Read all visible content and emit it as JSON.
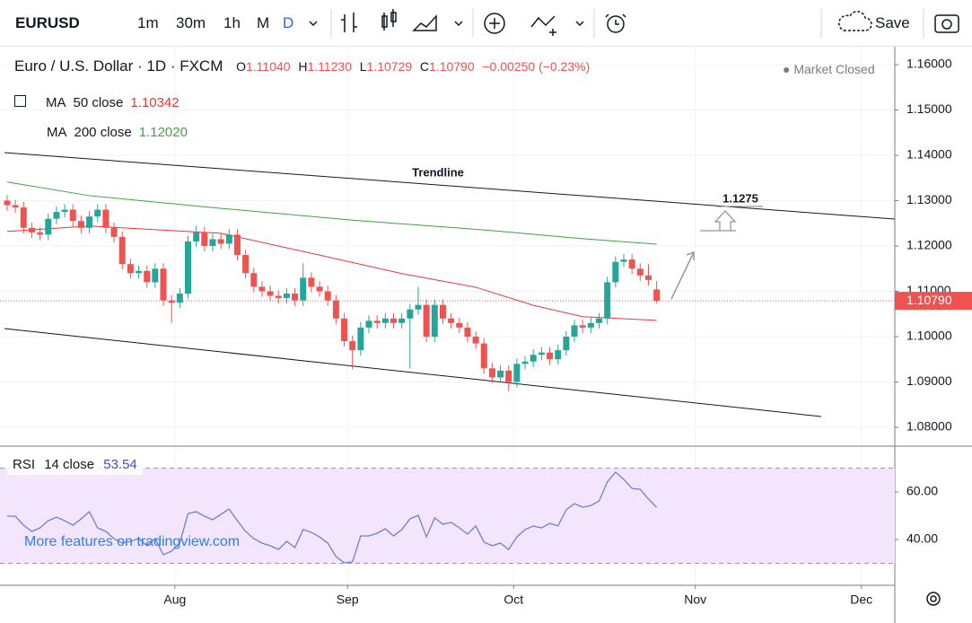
{
  "toolbar": {
    "symbol": "EURUSD",
    "intervals": [
      "1m",
      "30m",
      "1h",
      "M",
      "D"
    ],
    "save": "Save"
  },
  "legend": {
    "title": "Euro / U.S. Dollar · 1D · FXCM",
    "open_label": "O",
    "open": "1.11040",
    "high_label": "H",
    "high": "1.11230",
    "low_label": "L",
    "low": "1.10729",
    "close_label": "C",
    "close": "1.10790",
    "change": "−0.00250 (−0.23%)",
    "status": "Market Closed"
  },
  "chart_data": {
    "type": "candlestick",
    "up_color": "#26a69a",
    "down_color": "#ef5350",
    "xlim": [
      -0.87,
      107.97
    ],
    "xticks": [
      {
        "value": 20.4,
        "label": "Aug"
      },
      {
        "value": 41.4,
        "label": "Sep"
      },
      {
        "value": 61.6,
        "label": "Oct"
      },
      {
        "value": 83.7,
        "label": "Nov"
      },
      {
        "value": 103.9,
        "label": "Dec"
      }
    ],
    "ylim": [
      1.07584,
      1.16396
    ],
    "yticks": [
      {
        "value": 1.08,
        "label": "1.08000"
      },
      {
        "value": 1.09,
        "label": "1.09000"
      },
      {
        "value": 1.1,
        "label": "1.10000"
      },
      {
        "value": 1.11,
        "label": "1.11000"
      },
      {
        "value": 1.12,
        "label": "1.12000"
      },
      {
        "value": 1.13,
        "label": "1.13000"
      },
      {
        "value": 1.14,
        "label": "1.14000"
      },
      {
        "value": 1.15,
        "label": "1.15000"
      },
      {
        "value": 1.16,
        "label": "1.16000"
      }
    ],
    "last_price": {
      "value": 1.1079,
      "label": "1.10790"
    },
    "annotations": [
      "Trendline",
      "1.1275"
    ],
    "candles": [
      [
        1.13,
        1.1312,
        1.1278,
        1.129
      ],
      [
        1.129,
        1.1302,
        1.1273,
        1.1285
      ],
      [
        1.1285,
        1.1297,
        1.1228,
        1.124
      ],
      [
        1.124,
        1.1252,
        1.1218,
        1.123
      ],
      [
        1.123,
        1.1242,
        1.1213,
        1.1225
      ],
      [
        1.1225,
        1.1272,
        1.1213,
        1.126
      ],
      [
        1.126,
        1.1287,
        1.1248,
        1.1275
      ],
      [
        1.1275,
        1.1292,
        1.1263,
        1.128
      ],
      [
        1.128,
        1.1292,
        1.1243,
        1.1255
      ],
      [
        1.1255,
        1.1267,
        1.1228,
        1.124
      ],
      [
        1.124,
        1.1277,
        1.1228,
        1.1265
      ],
      [
        1.1265,
        1.1292,
        1.1253,
        1.128
      ],
      [
        1.128,
        1.1292,
        1.1228,
        1.124
      ],
      [
        1.124,
        1.1252,
        1.1208,
        1.122
      ],
      [
        1.122,
        1.1232,
        1.1148,
        1.116
      ],
      [
        1.116,
        1.1172,
        1.1128,
        1.114
      ],
      [
        1.114,
        1.1157,
        1.1128,
        1.1145
      ],
      [
        1.1145,
        1.1157,
        1.1108,
        1.112
      ],
      [
        1.112,
        1.1162,
        1.1108,
        1.115
      ],
      [
        1.115,
        1.1162,
        1.1068,
        1.108
      ],
      [
        1.108,
        1.1092,
        1.103,
        1.1075
      ],
      [
        1.1075,
        1.1107,
        1.1063,
        1.1095
      ],
      [
        1.1095,
        1.1222,
        1.1083,
        1.121
      ],
      [
        1.121,
        1.1245,
        1.1198,
        1.123
      ],
      [
        1.123,
        1.1242,
        1.1188,
        1.12
      ],
      [
        1.12,
        1.1227,
        1.1188,
        1.1215
      ],
      [
        1.1215,
        1.1227,
        1.1193,
        1.1205
      ],
      [
        1.1205,
        1.1237,
        1.1193,
        1.1225
      ],
      [
        1.1225,
        1.1237,
        1.1168,
        1.118
      ],
      [
        1.118,
        1.1192,
        1.1128,
        1.114
      ],
      [
        1.114,
        1.1152,
        1.1098,
        1.111
      ],
      [
        1.111,
        1.1122,
        1.1088,
        1.11
      ],
      [
        1.11,
        1.1112,
        1.1078,
        1.109
      ],
      [
        1.109,
        1.1102,
        1.1073,
        1.1085
      ],
      [
        1.1085,
        1.1107,
        1.1073,
        1.1095
      ],
      [
        1.1095,
        1.1107,
        1.1068,
        1.108
      ],
      [
        1.108,
        1.1162,
        1.1068,
        1.113
      ],
      [
        1.113,
        1.1142,
        1.1098,
        1.111
      ],
      [
        1.111,
        1.1122,
        1.1088,
        1.11
      ],
      [
        1.11,
        1.1112,
        1.1068,
        1.108
      ],
      [
        1.108,
        1.1092,
        1.1028,
        1.104
      ],
      [
        1.104,
        1.1052,
        1.0978,
        1.099
      ],
      [
        1.099,
        1.1002,
        1.0928,
        1.097
      ],
      [
        1.097,
        1.1032,
        1.0958,
        1.102
      ],
      [
        1.102,
        1.1047,
        1.1008,
        1.1035
      ],
      [
        1.1035,
        1.1047,
        1.1018,
        1.103
      ],
      [
        1.103,
        1.1052,
        1.1018,
        1.104
      ],
      [
        1.104,
        1.1052,
        1.1018,
        1.103
      ],
      [
        1.103,
        1.1052,
        1.1018,
        1.104
      ],
      [
        1.104,
        1.1072,
        1.093,
        1.106
      ],
      [
        1.106,
        1.111,
        1.1048,
        1.107
      ],
      [
        1.107,
        1.1082,
        1.0988,
        1.1
      ],
      [
        1.1,
        1.1082,
        1.0988,
        1.107
      ],
      [
        1.107,
        1.1082,
        1.1028,
        1.104
      ],
      [
        1.104,
        1.1052,
        1.1018,
        1.103
      ],
      [
        1.103,
        1.1042,
        1.1008,
        1.102
      ],
      [
        1.102,
        1.1032,
        1.0988,
        1.1
      ],
      [
        1.1,
        1.1012,
        1.0973,
        1.0985
      ],
      [
        1.0985,
        1.0997,
        1.0918,
        1.093
      ],
      [
        1.093,
        1.0942,
        1.0898,
        1.091
      ],
      [
        1.091,
        1.0937,
        1.0898,
        1.0925
      ],
      [
        1.0925,
        1.0937,
        1.088,
        1.09
      ],
      [
        1.09,
        1.0952,
        1.0888,
        1.094
      ],
      [
        1.094,
        1.0957,
        1.0928,
        1.0945
      ],
      [
        1.0945,
        1.0972,
        1.0933,
        1.096
      ],
      [
        1.096,
        1.0977,
        1.0948,
        1.0965
      ],
      [
        1.0965,
        1.0977,
        1.0938,
        1.095
      ],
      [
        1.095,
        1.0982,
        1.0938,
        1.097
      ],
      [
        1.097,
        1.1012,
        1.0958,
        1.1
      ],
      [
        1.1,
        1.1037,
        1.0988,
        1.1025
      ],
      [
        1.1025,
        1.1037,
        1.1008,
        1.102
      ],
      [
        1.102,
        1.1042,
        1.1008,
        1.103
      ],
      [
        1.103,
        1.1052,
        1.1018,
        1.104
      ],
      [
        1.104,
        1.1132,
        1.1028,
        1.112
      ],
      [
        1.112,
        1.1177,
        1.1108,
        1.1165
      ],
      [
        1.1165,
        1.1182,
        1.1153,
        1.117
      ],
      [
        1.117,
        1.1182,
        1.1138,
        1.115
      ],
      [
        1.115,
        1.1162,
        1.1123,
        1.1135
      ],
      [
        1.1135,
        1.116,
        1.1113,
        1.1125
      ],
      [
        1.1104,
        1.1123,
        1.1073,
        1.1079
      ]
    ],
    "series": [
      {
        "name": "MA",
        "params": "50 close",
        "value_label": "1.10342",
        "color": "#e53935",
        "x": [
          0,
          10,
          26,
          37,
          48,
          57,
          64,
          70,
          79
        ],
        "values": [
          1.1232,
          1.1244,
          1.1228,
          1.1184,
          1.1139,
          1.1109,
          1.1069,
          1.1044,
          1.1036
        ]
      },
      {
        "name": "MA",
        "params": "200 close",
        "value_label": "1.12020",
        "color": "#43a047",
        "x": [
          0,
          10,
          26,
          42,
          59,
          70,
          79
        ],
        "values": [
          1.1341,
          1.1311,
          1.1283,
          1.1257,
          1.1234,
          1.1216,
          1.1204
        ]
      }
    ],
    "rsi": {
      "name": "RSI",
      "params": "14 close",
      "value_label": "53.54",
      "color": "#6f7fd6",
      "band": [
        30,
        70
      ],
      "band_color": "#f3e5fb",
      "ylim": [
        20.75,
        79.25
      ],
      "yticks": [
        {
          "value": 40,
          "label": "40.00"
        },
        {
          "value": 60,
          "label": "60.00"
        }
      ],
      "values": [
        49.8,
        49.8,
        46.0,
        43.4,
        44.9,
        47.9,
        49.4,
        47.9,
        46.0,
        48.7,
        51.7,
        44.9,
        43.4,
        40.4,
        38.5,
        39.2,
        40.4,
        37.4,
        40.4,
        33.6,
        35.1,
        38.5,
        50.9,
        51.7,
        49.8,
        48.3,
        50.6,
        52.8,
        47.9,
        43.4,
        40.4,
        38.5,
        37.4,
        35.8,
        39.2,
        36.6,
        44.2,
        43.0,
        41.1,
        38.5,
        32.8,
        30.2,
        30.6,
        41.5,
        41.5,
        42.6,
        44.5,
        41.5,
        44.2,
        48.7,
        50.2,
        41.1,
        49.1,
        46.4,
        47.2,
        44.9,
        42.3,
        45.7,
        38.9,
        37.4,
        38.5,
        35.8,
        41.1,
        44.2,
        45.7,
        44.9,
        46.8,
        45.7,
        52.5,
        55.1,
        53.6,
        54.3,
        56.2,
        64.2,
        68.3,
        65.3,
        61.5,
        61.1,
        57.0,
        53.54
      ]
    }
  },
  "watermark": "More features on tradingview.com"
}
